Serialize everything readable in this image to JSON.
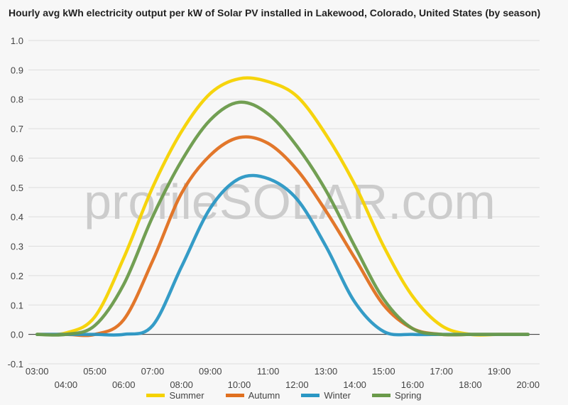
{
  "chart_data": {
    "type": "line",
    "title": "Hourly avg kWh electricity output per kW of Solar PV installed in Lakewood, Colorado, United States (by season)",
    "watermark": "profileSOLAR.com",
    "xlabel": "",
    "ylabel": "",
    "ylim": [
      -0.1,
      1.0
    ],
    "y_ticks": [
      "-0.1",
      "0.0",
      "0.1",
      "0.2",
      "0.3",
      "0.4",
      "0.5",
      "0.6",
      "0.7",
      "0.8",
      "0.9",
      "1.0"
    ],
    "x_ticks": [
      "03:00",
      "04:00",
      "05:00",
      "06:00",
      "07:00",
      "08:00",
      "09:00",
      "10:00",
      "11:00",
      "12:00",
      "13:00",
      "14:00",
      "15:00",
      "16:00",
      "17:00",
      "18:00",
      "19:00",
      "20:00"
    ],
    "grid": true,
    "legend_position": "bottom",
    "x": [
      3,
      4,
      5,
      6,
      7,
      8,
      9,
      10,
      11,
      12,
      13,
      14,
      15,
      16,
      17,
      18,
      19,
      20
    ],
    "series": [
      {
        "name": "Summer",
        "color": "#f5d200",
        "values": [
          0,
          0.005,
          0.06,
          0.26,
          0.5,
          0.69,
          0.82,
          0.87,
          0.86,
          0.81,
          0.68,
          0.51,
          0.3,
          0.13,
          0.03,
          0,
          0,
          0
        ]
      },
      {
        "name": "Autumn",
        "color": "#e07020",
        "values": [
          0,
          0,
          0,
          0.05,
          0.25,
          0.48,
          0.61,
          0.67,
          0.65,
          0.56,
          0.42,
          0.26,
          0.1,
          0.02,
          0,
          0,
          0,
          0
        ]
      },
      {
        "name": "Winter",
        "color": "#2a97c4",
        "values": [
          0,
          0,
          0,
          0,
          0.03,
          0.23,
          0.43,
          0.53,
          0.53,
          0.46,
          0.3,
          0.11,
          0.01,
          0,
          0,
          0,
          0,
          0
        ]
      },
      {
        "name": "Spring",
        "color": "#6a9a4a",
        "values": [
          0,
          0,
          0.03,
          0.17,
          0.4,
          0.59,
          0.73,
          0.79,
          0.75,
          0.64,
          0.49,
          0.3,
          0.12,
          0.02,
          0,
          0,
          0,
          0
        ]
      }
    ]
  }
}
